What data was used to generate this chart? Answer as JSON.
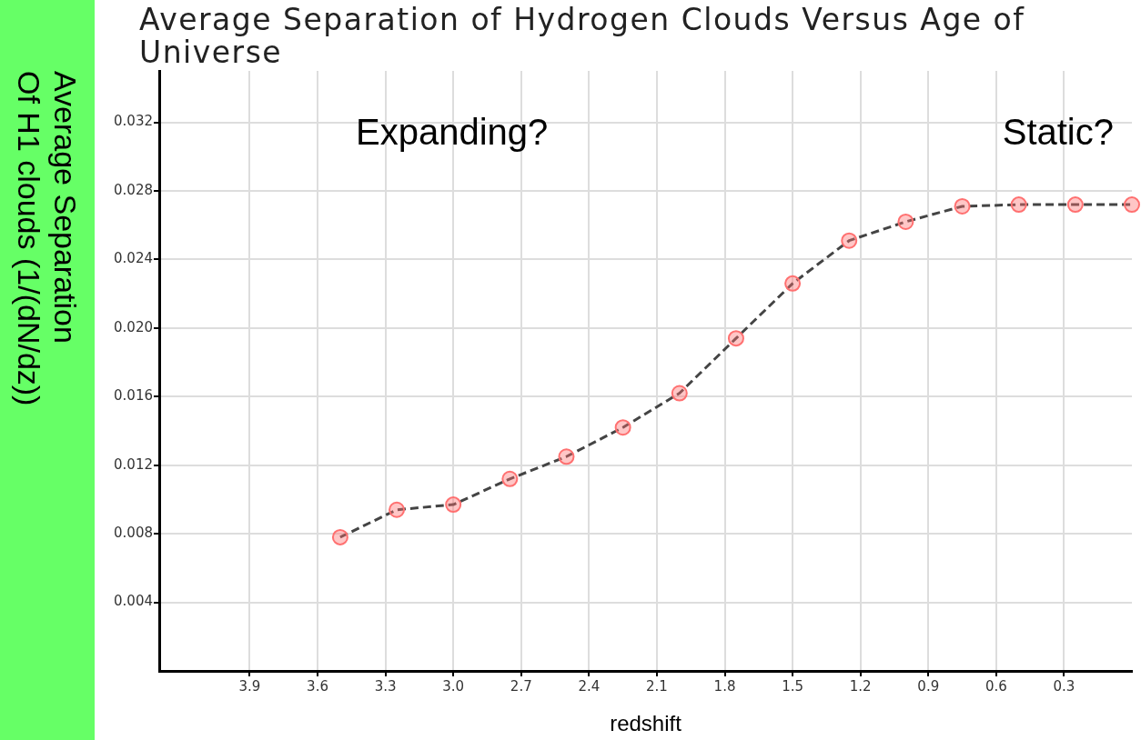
{
  "chart_data": {
    "type": "line",
    "title": "Average Separation of Hydrogen Clouds Versus Age of Universe",
    "xlabel": "redshift",
    "ylabel": "Average Separation\nOf H1 clouds (1/(dN/dz))",
    "annotations": [
      "Expanding?",
      "Static?"
    ],
    "x": [
      3.5,
      3.25,
      3.0,
      2.75,
      2.5,
      2.25,
      2.0,
      1.75,
      1.5,
      1.25,
      1.0,
      0.75,
      0.5,
      0.25,
      0.0
    ],
    "series": [
      {
        "color": "#ff7070",
        "values": [
          0.0078,
          0.0094,
          0.0097,
          0.0112,
          0.0125,
          0.0142,
          0.0162,
          0.0194,
          0.0226,
          0.0251,
          0.0262,
          0.0271,
          0.0272,
          0.0272,
          0.0272
        ]
      }
    ],
    "xlim": [
      4.3,
      0
    ],
    "xticks": [
      3.9,
      3.6,
      3.3,
      {
        "value": 3,
        "label": "3.0"
      },
      2.7,
      2.4,
      2.1,
      1.8,
      1.5,
      1.2,
      0.9,
      0.6,
      0.3
    ],
    "ylim": [
      0,
      0.035
    ],
    "yticks": [
      0.004,
      0.008,
      0.012,
      0.016,
      {
        "value": 0.02,
        "label": "0.020"
      },
      0.024,
      0.028,
      0.032
    ],
    "grid": true,
    "legend": false,
    "marker": "circle",
    "line_style": "dashed"
  }
}
